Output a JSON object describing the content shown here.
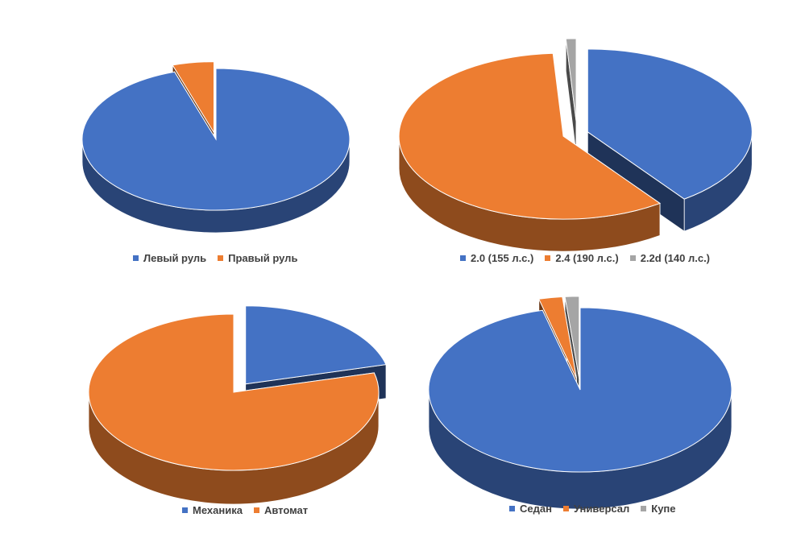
{
  "colors": {
    "blue": "#4472c4",
    "orange": "#ed7d31",
    "gray": "#a5a5a5"
  },
  "chart_data": [
    {
      "type": "pie",
      "style": "3d-exploded",
      "title": "",
      "series": [
        {
          "name": "Левый руль",
          "value": 95,
          "color": "#4472c4"
        },
        {
          "name": "Правый руль",
          "value": 5,
          "color": "#ed7d31"
        }
      ],
      "legend": "bottom"
    },
    {
      "type": "pie",
      "style": "3d-exploded",
      "title": "",
      "series": [
        {
          "name": "2.0 (155 л.с.)",
          "value": 40,
          "color": "#4472c4"
        },
        {
          "name": "2.4 (190 л.с.)",
          "value": 59,
          "color": "#ed7d31"
        },
        {
          "name": "2.2d (140 л.с.)",
          "value": 1,
          "color": "#a5a5a5"
        }
      ],
      "legend": "bottom"
    },
    {
      "type": "pie",
      "style": "3d-exploded",
      "title": "",
      "series": [
        {
          "name": "Механика",
          "value": 21,
          "color": "#4472c4"
        },
        {
          "name": "Автомат",
          "value": 79,
          "color": "#ed7d31"
        }
      ],
      "legend": "bottom"
    },
    {
      "type": "pie",
      "style": "3d-exploded",
      "title": "",
      "series": [
        {
          "name": "Седан",
          "value": 96,
          "color": "#4472c4"
        },
        {
          "name": "Универсал",
          "value": 2.5,
          "color": "#ed7d31"
        },
        {
          "name": "Купе",
          "value": 1.5,
          "color": "#a5a5a5"
        }
      ],
      "legend": "bottom"
    }
  ]
}
